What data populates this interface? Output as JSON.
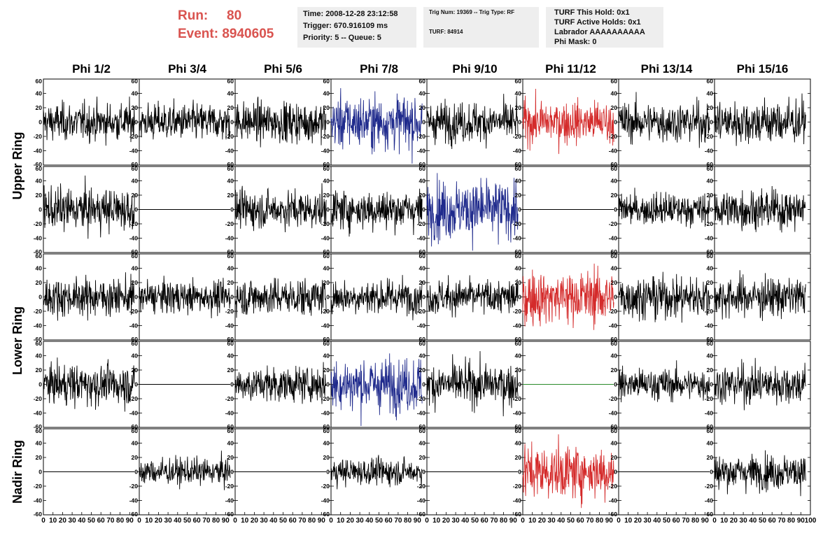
{
  "header": {
    "run_label": "Run:",
    "run_value": "80",
    "event_label": "Event:",
    "event_value": "8940605",
    "time_line": "Time: 2008-12-28 23:12:58",
    "trigger_line": "Trigger: 670.916109 ms",
    "priority_line": "Priority: 5 -- Queue: 5",
    "trig_num_line": "Trig Num: 19369 -- Trig Type: RF",
    "turf_line": "TURF: 84914",
    "turf_this_hold": "TURF This Hold: 0x1",
    "turf_active_holds": "TURF Active Holds: 0x1",
    "labrador": "Labrador AAAAAAAAAA",
    "phi_mask": "Phi Mask: 0"
  },
  "colors": {
    "normal": "#000000",
    "triggered_blue": "#1f2a8c",
    "triggered_red": "#d42a2a",
    "flat_green": "#2a8a2a",
    "text_red": "#d9534f"
  },
  "chart_data": {
    "type": "line",
    "columns": [
      "Phi 1/2",
      "Phi 3/4",
      "Phi 5/6",
      "Phi 7/8",
      "Phi 9/10",
      "Phi 11/12",
      "Phi 13/14",
      "Phi 15/16"
    ],
    "ring_labels": [
      {
        "text": "Upper Ring",
        "rows": [
          0,
          1
        ]
      },
      {
        "text": "Lower Ring",
        "rows": [
          2,
          3
        ]
      },
      {
        "text": "Nadir Ring",
        "rows": [
          4
        ]
      }
    ],
    "ylim": [
      -60,
      60
    ],
    "xlim": [
      0,
      100
    ],
    "y_ticks": [
      "60",
      "40",
      "20",
      "0",
      "-20",
      "-40",
      "-60"
    ],
    "x_ticks": [
      "0",
      "10",
      "20",
      "30",
      "40",
      "50",
      "60",
      "70",
      "80",
      "90",
      "100"
    ],
    "rows": [
      [
        "n:14",
        "n:14",
        "n:15",
        "b:20",
        "n:15",
        "r:16",
        "n:15",
        "n:17"
      ],
      [
        "n:16",
        "f",
        "n:14",
        "n:15",
        "b:22",
        "f",
        "n:12",
        "n:15"
      ],
      [
        "n:14",
        "n:12",
        "n:14",
        "n:13",
        "n:13",
        "r:20",
        "n:16",
        "n:15"
      ],
      [
        "n:15",
        "f",
        "n:13",
        "b:20",
        "n:16",
        "g",
        "n:12",
        "n:15"
      ],
      [
        "f",
        "n:10",
        "f",
        "n:10",
        "f",
        "r:20",
        "f",
        "n:13"
      ]
    ]
  }
}
